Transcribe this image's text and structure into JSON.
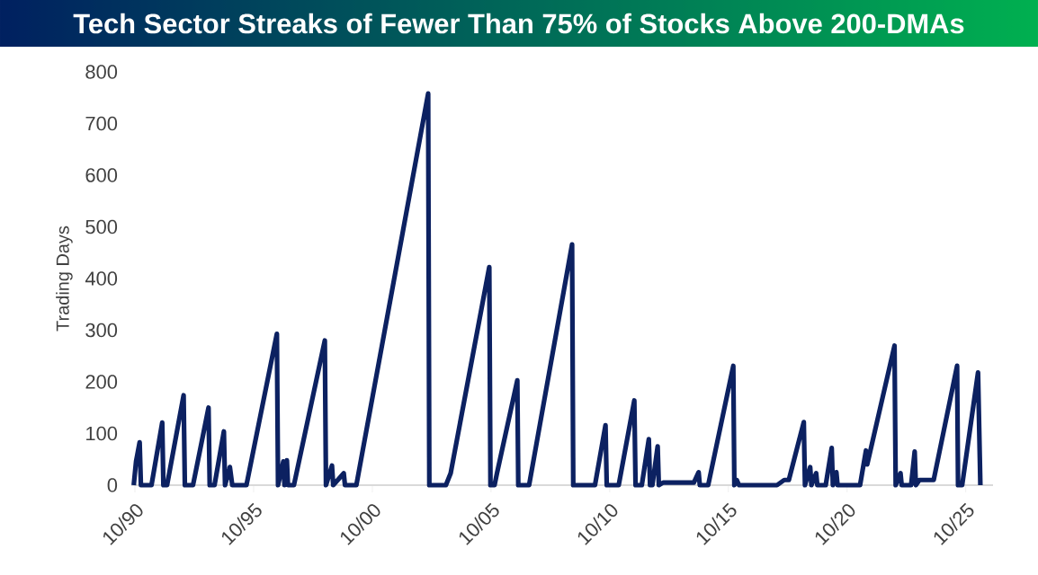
{
  "chart_data": {
    "type": "line",
    "title": "Tech Sector Streaks of Fewer Than 75% of Stocks Above 200-DMAs",
    "ylabel": "Trading Days",
    "x": [
      "1990-09-13",
      "1990-10-19",
      "1990-12-13",
      "1991-01-01",
      "1991-06-13",
      "1991-11-25",
      "1991-12-13",
      "1992-02-07",
      "1992-10-19",
      "1992-11-07",
      "1993-03-13",
      "1993-04-19",
      "1993-11-07",
      "1993-11-25",
      "1994-02-07",
      "1994-07-01",
      "1994-07-19",
      "1994-10-01",
      "1994-11-07",
      "1995-06-13",
      "1996-09-23",
      "1996-10-11",
      "1997-01-01",
      "1997-01-19",
      "1997-02-25",
      "1997-03-13",
      "1997-06-13",
      "1998-10-01",
      "1998-10-19",
      "1999-01-19",
      "1999-02-07",
      "1999-07-19",
      "1999-08-07",
      "2000-01-29",
      "2003-02-07",
      "2003-02-25",
      "2003-11-07",
      "2004-01-19",
      "2005-09-05",
      "2005-09-23",
      "2005-11-25",
      "2006-01-01",
      "2006-11-10",
      "2006-11-25",
      "2007-05-10",
      "2009-03-02",
      "2009-03-20",
      "2010-02-17",
      "2010-07-29",
      "2010-08-17",
      "2011-02-17",
      "2011-10-15",
      "2011-11-03",
      "2012-02-07",
      "2012-05-25",
      "2012-06-13",
      "2012-07-19",
      "2012-10-08",
      "2012-10-26",
      "2013-01-01",
      "2014-04-19",
      "2014-07-01",
      "2014-07-19",
      "2014-11-25",
      "2015-12-16",
      "2016-01-01",
      "2016-02-07",
      "2016-03-13",
      "2017-10-19",
      "2018-02-07",
      "2018-04-19",
      "2018-12-05",
      "2018-12-23",
      "2019-03-13",
      "2019-04-01",
      "2019-06-13",
      "2019-07-01",
      "2019-11-07",
      "2020-02-07",
      "2020-02-25",
      "2020-04-19",
      "2020-05-07",
      "2021-04-19",
      "2021-07-19",
      "2021-08-07",
      "2022-10-01",
      "2022-10-19",
      "2023-01-01",
      "2023-01-19",
      "2023-06-13",
      "2023-08-07",
      "2023-08-25",
      "2023-10-19",
      "2024-05-25",
      "2025-05-21",
      "2025-06-05",
      "2025-08-07",
      "2026-04-08",
      "2026-05-14"
    ],
    "series": [
      {
        "color": "#0c2161",
        "values": [
          0,
          46,
          83,
          0,
          0,
          121,
          0,
          0,
          174,
          0,
          0,
          23,
          150,
          0,
          0,
          104,
          0,
          35,
          0,
          0,
          293,
          0,
          46,
          0,
          48,
          0,
          0,
          280,
          0,
          38,
          0,
          23,
          0,
          0,
          758,
          0,
          0,
          23,
          422,
          0,
          0,
          23,
          203,
          0,
          0,
          466,
          0,
          0,
          116,
          0,
          0,
          164,
          0,
          0,
          89,
          0,
          0,
          75,
          0,
          5,
          5,
          25,
          0,
          0,
          231,
          0,
          10,
          0,
          0,
          10,
          10,
          122,
          0,
          35,
          0,
          23,
          0,
          0,
          72,
          0,
          25,
          0,
          0,
          67,
          40,
          270,
          0,
          23,
          0,
          0,
          65,
          0,
          10,
          10,
          231,
          0,
          0,
          218,
          0
        ]
      }
    ],
    "xlim": [
      "1990-08-07",
      "2026-11-25"
    ],
    "ylim": [
      0,
      800
    ],
    "yticks": [
      0,
      100,
      200,
      300,
      400,
      500,
      600,
      700,
      800
    ],
    "xticks": [
      {
        "value": "1990-10-01",
        "label": "10/90"
      },
      {
        "value": "1995-10-01",
        "label": "10/95"
      },
      {
        "value": "2000-10-01",
        "label": "10/00"
      },
      {
        "value": "2005-10-01",
        "label": "10/05"
      },
      {
        "value": "2010-10-01",
        "label": "10/10"
      },
      {
        "value": "2015-10-01",
        "label": "10/15"
      },
      {
        "value": "2020-10-01",
        "label": "10/20"
      },
      {
        "value": "2025-10-01",
        "label": "10/25"
      }
    ],
    "grid": false,
    "marker": "none",
    "line_style": "solid"
  }
}
